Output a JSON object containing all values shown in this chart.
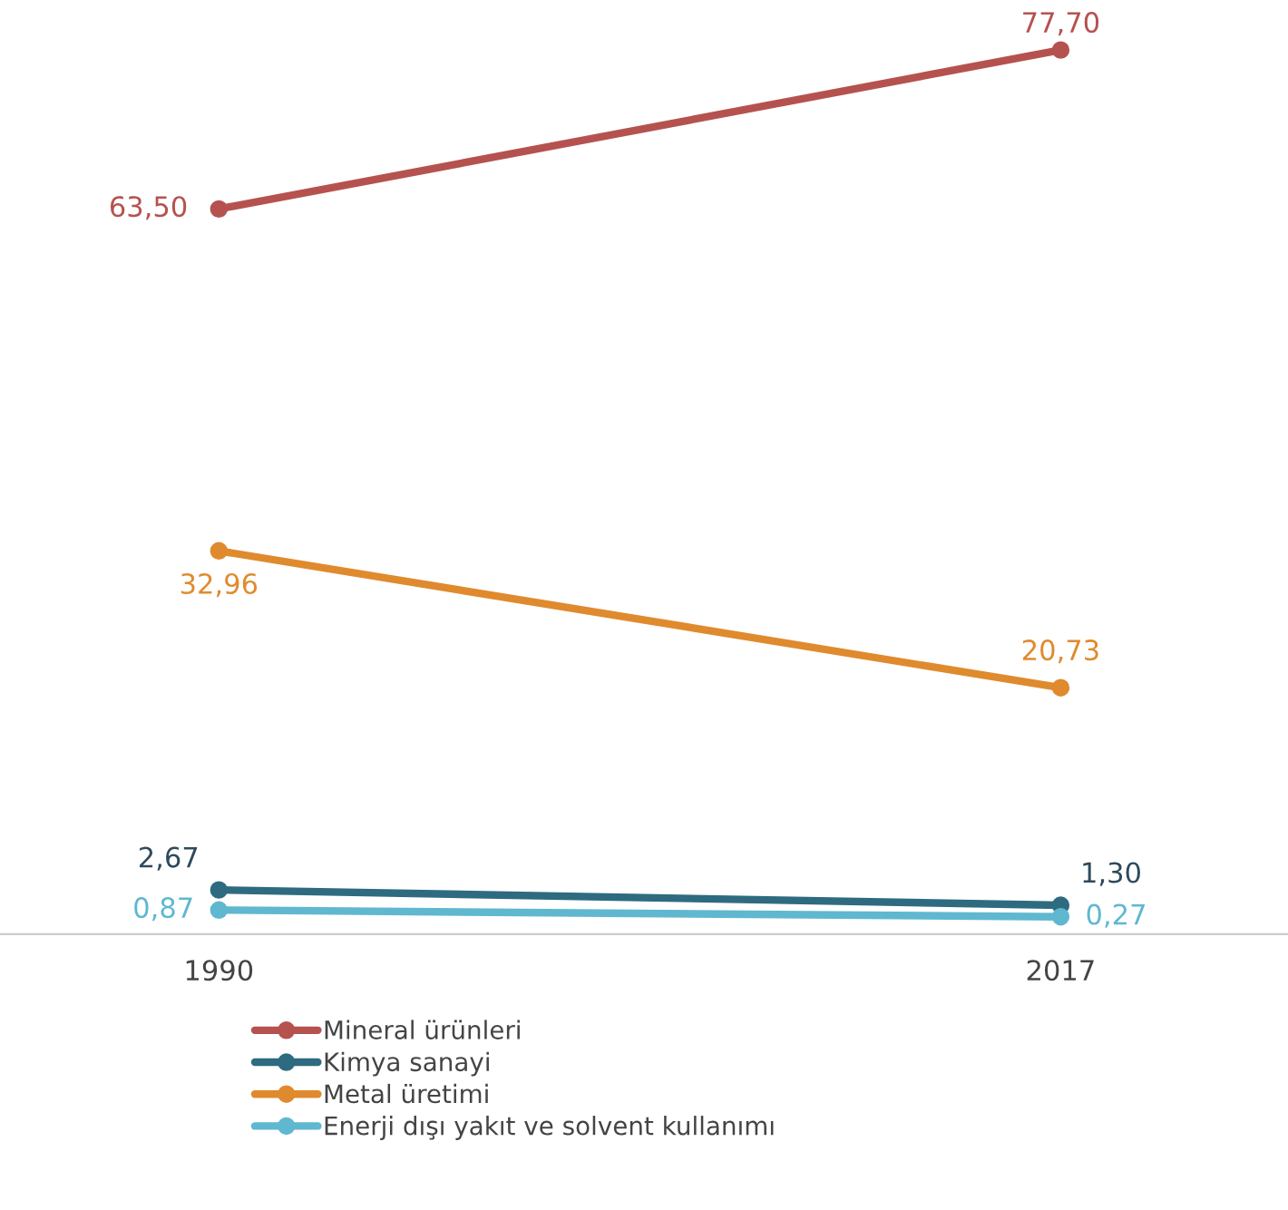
{
  "chart_data": {
    "type": "line",
    "categories": [
      "1990",
      "2017"
    ],
    "series": [
      {
        "name": "Mineral ürünleri",
        "color": "#b5524f",
        "values": [
          63.5,
          77.7
        ],
        "value_labels": [
          "63,50",
          "77,70"
        ]
      },
      {
        "name": "Kimya sanayi",
        "color": "#2e6b80",
        "values": [
          2.67,
          1.3
        ],
        "value_labels": [
          "2,67",
          "1,30"
        ]
      },
      {
        "name": "Metal üretimi",
        "color": "#e08a2e",
        "values": [
          32.96,
          20.73
        ],
        "value_labels": [
          "32,96",
          "20,73"
        ]
      },
      {
        "name": "Enerji dışı yakıt ve solvent kullanımı",
        "color": "#5fb8cf",
        "values": [
          0.87,
          0.27
        ],
        "value_labels": [
          "0,87",
          "0,27"
        ]
      }
    ],
    "tick_labels": "x",
    "marker": "circle",
    "line_style": "solid",
    "legend": "bottom",
    "grid": false
  }
}
